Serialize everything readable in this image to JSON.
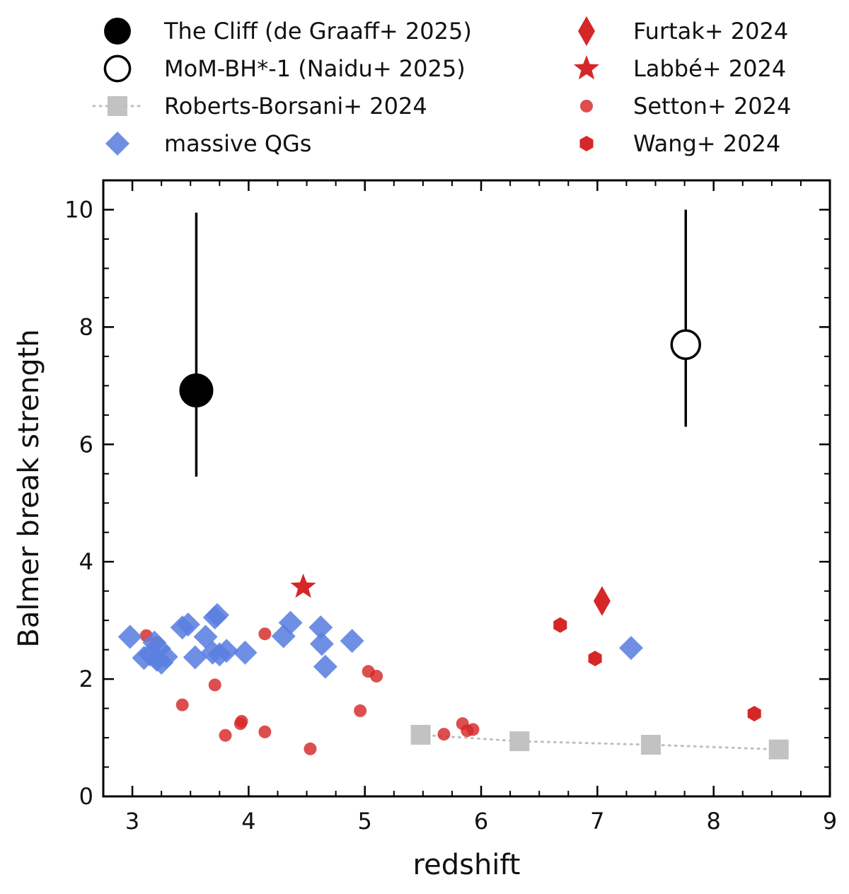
{
  "chart_data": {
    "type": "scatter",
    "title": "",
    "xlabel": "redshift",
    "ylabel": "Balmer break strength",
    "xlim": [
      2.75,
      9.0
    ],
    "ylim": [
      0,
      10.5
    ],
    "xticks": [
      {
        "value": 3,
        "label": "3"
      },
      {
        "value": 4,
        "label": "4"
      },
      {
        "value": 5,
        "label": "5"
      },
      {
        "value": 6,
        "label": "6"
      },
      {
        "value": 7,
        "label": "7"
      },
      {
        "value": 8,
        "label": "8"
      },
      {
        "value": 9,
        "label": "9"
      }
    ],
    "yticks": [
      {
        "value": 0,
        "label": "0"
      },
      {
        "value": 2,
        "label": "2"
      },
      {
        "value": 4,
        "label": "4"
      },
      {
        "value": 6,
        "label": "6"
      },
      {
        "value": 8,
        "label": "8"
      },
      {
        "value": 10,
        "label": "10"
      }
    ],
    "grid": false,
    "legend_placement": "top, outside plot, two columns",
    "series": [
      {
        "name": "The Cliff (de Graaff+ 2025)",
        "marker": "circle-filled",
        "color": "#000000",
        "points": [
          {
            "x": 3.55,
            "y": 6.92,
            "ylow": 5.45,
            "yhigh": 9.95
          }
        ]
      },
      {
        "name": "MoM-BH*-1 (Naidu+ 2025)",
        "marker": "circle-open",
        "color": "#000000",
        "points": [
          {
            "x": 7.76,
            "y": 7.7,
            "ylow": 6.3,
            "yhigh": 10.0
          }
        ]
      },
      {
        "name": "Roberts-Borsani+ 2024",
        "marker": "square",
        "color": "#bfbfbf",
        "line": "dotted",
        "points": [
          {
            "x": 5.48,
            "y": 1.05
          },
          {
            "x": 6.33,
            "y": 0.94
          },
          {
            "x": 7.46,
            "y": 0.88
          },
          {
            "x": 8.56,
            "y": 0.8
          }
        ]
      },
      {
        "name": "massive QGs",
        "marker": "diamond",
        "color": "#5b7fe0",
        "points": [
          {
            "x": 2.98,
            "y": 2.72
          },
          {
            "x": 3.1,
            "y": 2.36
          },
          {
            "x": 3.15,
            "y": 2.42
          },
          {
            "x": 3.19,
            "y": 2.62
          },
          {
            "x": 3.21,
            "y": 2.33
          },
          {
            "x": 3.23,
            "y": 2.52
          },
          {
            "x": 3.25,
            "y": 2.28
          },
          {
            "x": 3.29,
            "y": 2.38
          },
          {
            "x": 3.43,
            "y": 2.88
          },
          {
            "x": 3.48,
            "y": 2.93
          },
          {
            "x": 3.54,
            "y": 2.37
          },
          {
            "x": 3.63,
            "y": 2.72
          },
          {
            "x": 3.69,
            "y": 2.45
          },
          {
            "x": 3.71,
            "y": 3.05
          },
          {
            "x": 3.73,
            "y": 3.09
          },
          {
            "x": 3.75,
            "y": 2.42
          },
          {
            "x": 3.81,
            "y": 2.48
          },
          {
            "x": 3.97,
            "y": 2.45
          },
          {
            "x": 4.3,
            "y": 2.73
          },
          {
            "x": 4.36,
            "y": 2.96
          },
          {
            "x": 4.62,
            "y": 2.88
          },
          {
            "x": 4.63,
            "y": 2.6
          },
          {
            "x": 4.66,
            "y": 2.21
          },
          {
            "x": 4.89,
            "y": 2.65
          },
          {
            "x": 7.29,
            "y": 2.53
          }
        ]
      },
      {
        "name": "Furtak+ 2024",
        "marker": "thin-diamond",
        "color": "#d62728",
        "points": [
          {
            "x": 7.04,
            "y": 3.33
          }
        ]
      },
      {
        "name": "Labbé+ 2024",
        "marker": "star",
        "color": "#d62728",
        "points": [
          {
            "x": 4.47,
            "y": 3.57
          }
        ]
      },
      {
        "name": "Setton+ 2024",
        "marker": "small-circle",
        "color": "#d62728",
        "points": [
          {
            "x": 3.12,
            "y": 2.74
          },
          {
            "x": 3.21,
            "y": 2.62
          },
          {
            "x": 3.43,
            "y": 1.56
          },
          {
            "x": 3.71,
            "y": 1.9
          },
          {
            "x": 3.8,
            "y": 1.04
          },
          {
            "x": 3.93,
            "y": 1.24
          },
          {
            "x": 3.94,
            "y": 1.28
          },
          {
            "x": 4.14,
            "y": 2.77
          },
          {
            "x": 4.14,
            "y": 1.1
          },
          {
            "x": 4.53,
            "y": 0.81
          },
          {
            "x": 4.96,
            "y": 1.46
          },
          {
            "x": 5.03,
            "y": 2.13
          },
          {
            "x": 5.1,
            "y": 2.05
          },
          {
            "x": 5.68,
            "y": 1.06
          },
          {
            "x": 5.84,
            "y": 1.24
          },
          {
            "x": 5.88,
            "y": 1.12
          },
          {
            "x": 5.93,
            "y": 1.14
          }
        ]
      },
      {
        "name": "Wang+ 2024",
        "marker": "hexagon",
        "color": "#d62728",
        "points": [
          {
            "x": 6.68,
            "y": 2.92
          },
          {
            "x": 6.98,
            "y": 2.35
          },
          {
            "x": 8.35,
            "y": 1.41
          }
        ]
      }
    ]
  },
  "legend": {
    "items": [
      {
        "label": "The Cliff (de Graaff+ 2025)"
      },
      {
        "label": "MoM-BH*-1 (Naidu+ 2025)"
      },
      {
        "label": "Roberts-Borsani+ 2024"
      },
      {
        "label": "massive QGs"
      },
      {
        "label": "Furtak+ 2024"
      },
      {
        "label": "Labbé+ 2024"
      },
      {
        "label": "Setton+ 2024"
      },
      {
        "label": "Wang+ 2024"
      }
    ]
  }
}
